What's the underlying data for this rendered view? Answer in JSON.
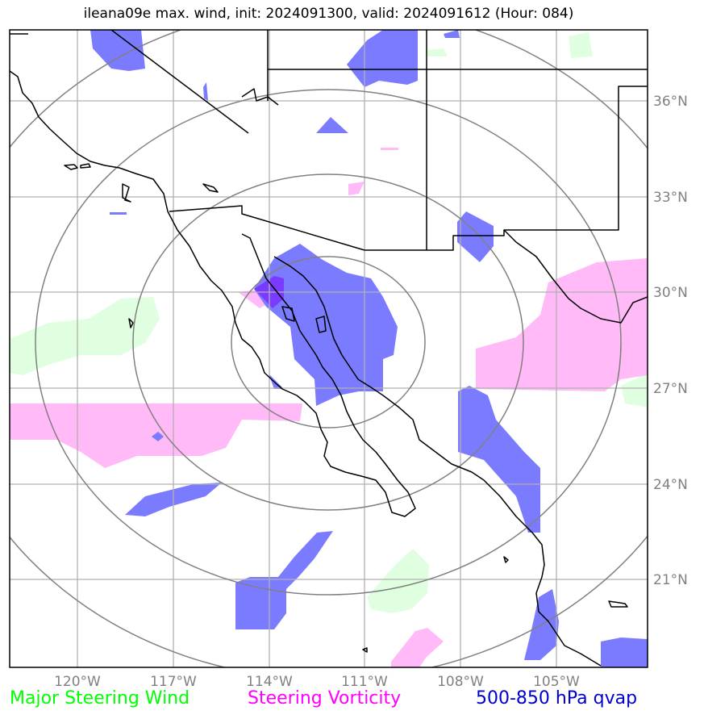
{
  "title": "ileana09e max. wind, init: 2024091300, valid: 2024091612 (Hour: 084)",
  "lon_labels": [
    "120°W",
    "117°W",
    "114°W",
    "111°W",
    "108°W",
    "105°W"
  ],
  "lat_labels": [
    "36°N",
    "33°N",
    "30°N",
    "27°N",
    "24°N",
    "21°N"
  ],
  "legend": [
    {
      "label": "Major Steering Wind",
      "color": "#00ff00"
    },
    {
      "label": "Steering Vorticity",
      "color": "#ff00ff"
    },
    {
      "label": "500-850 hPa qvap",
      "color": "#0000cd"
    }
  ],
  "colors": {
    "qvap_fill": "#7b7bff",
    "vorticity_fill": "#ffbaf7",
    "wind_fill": "#e0ffe0",
    "overlap_fill": "#7a3aff",
    "grid": "#b0b0b0",
    "range_rings": "#808080",
    "coastline": "#000000"
  }
}
